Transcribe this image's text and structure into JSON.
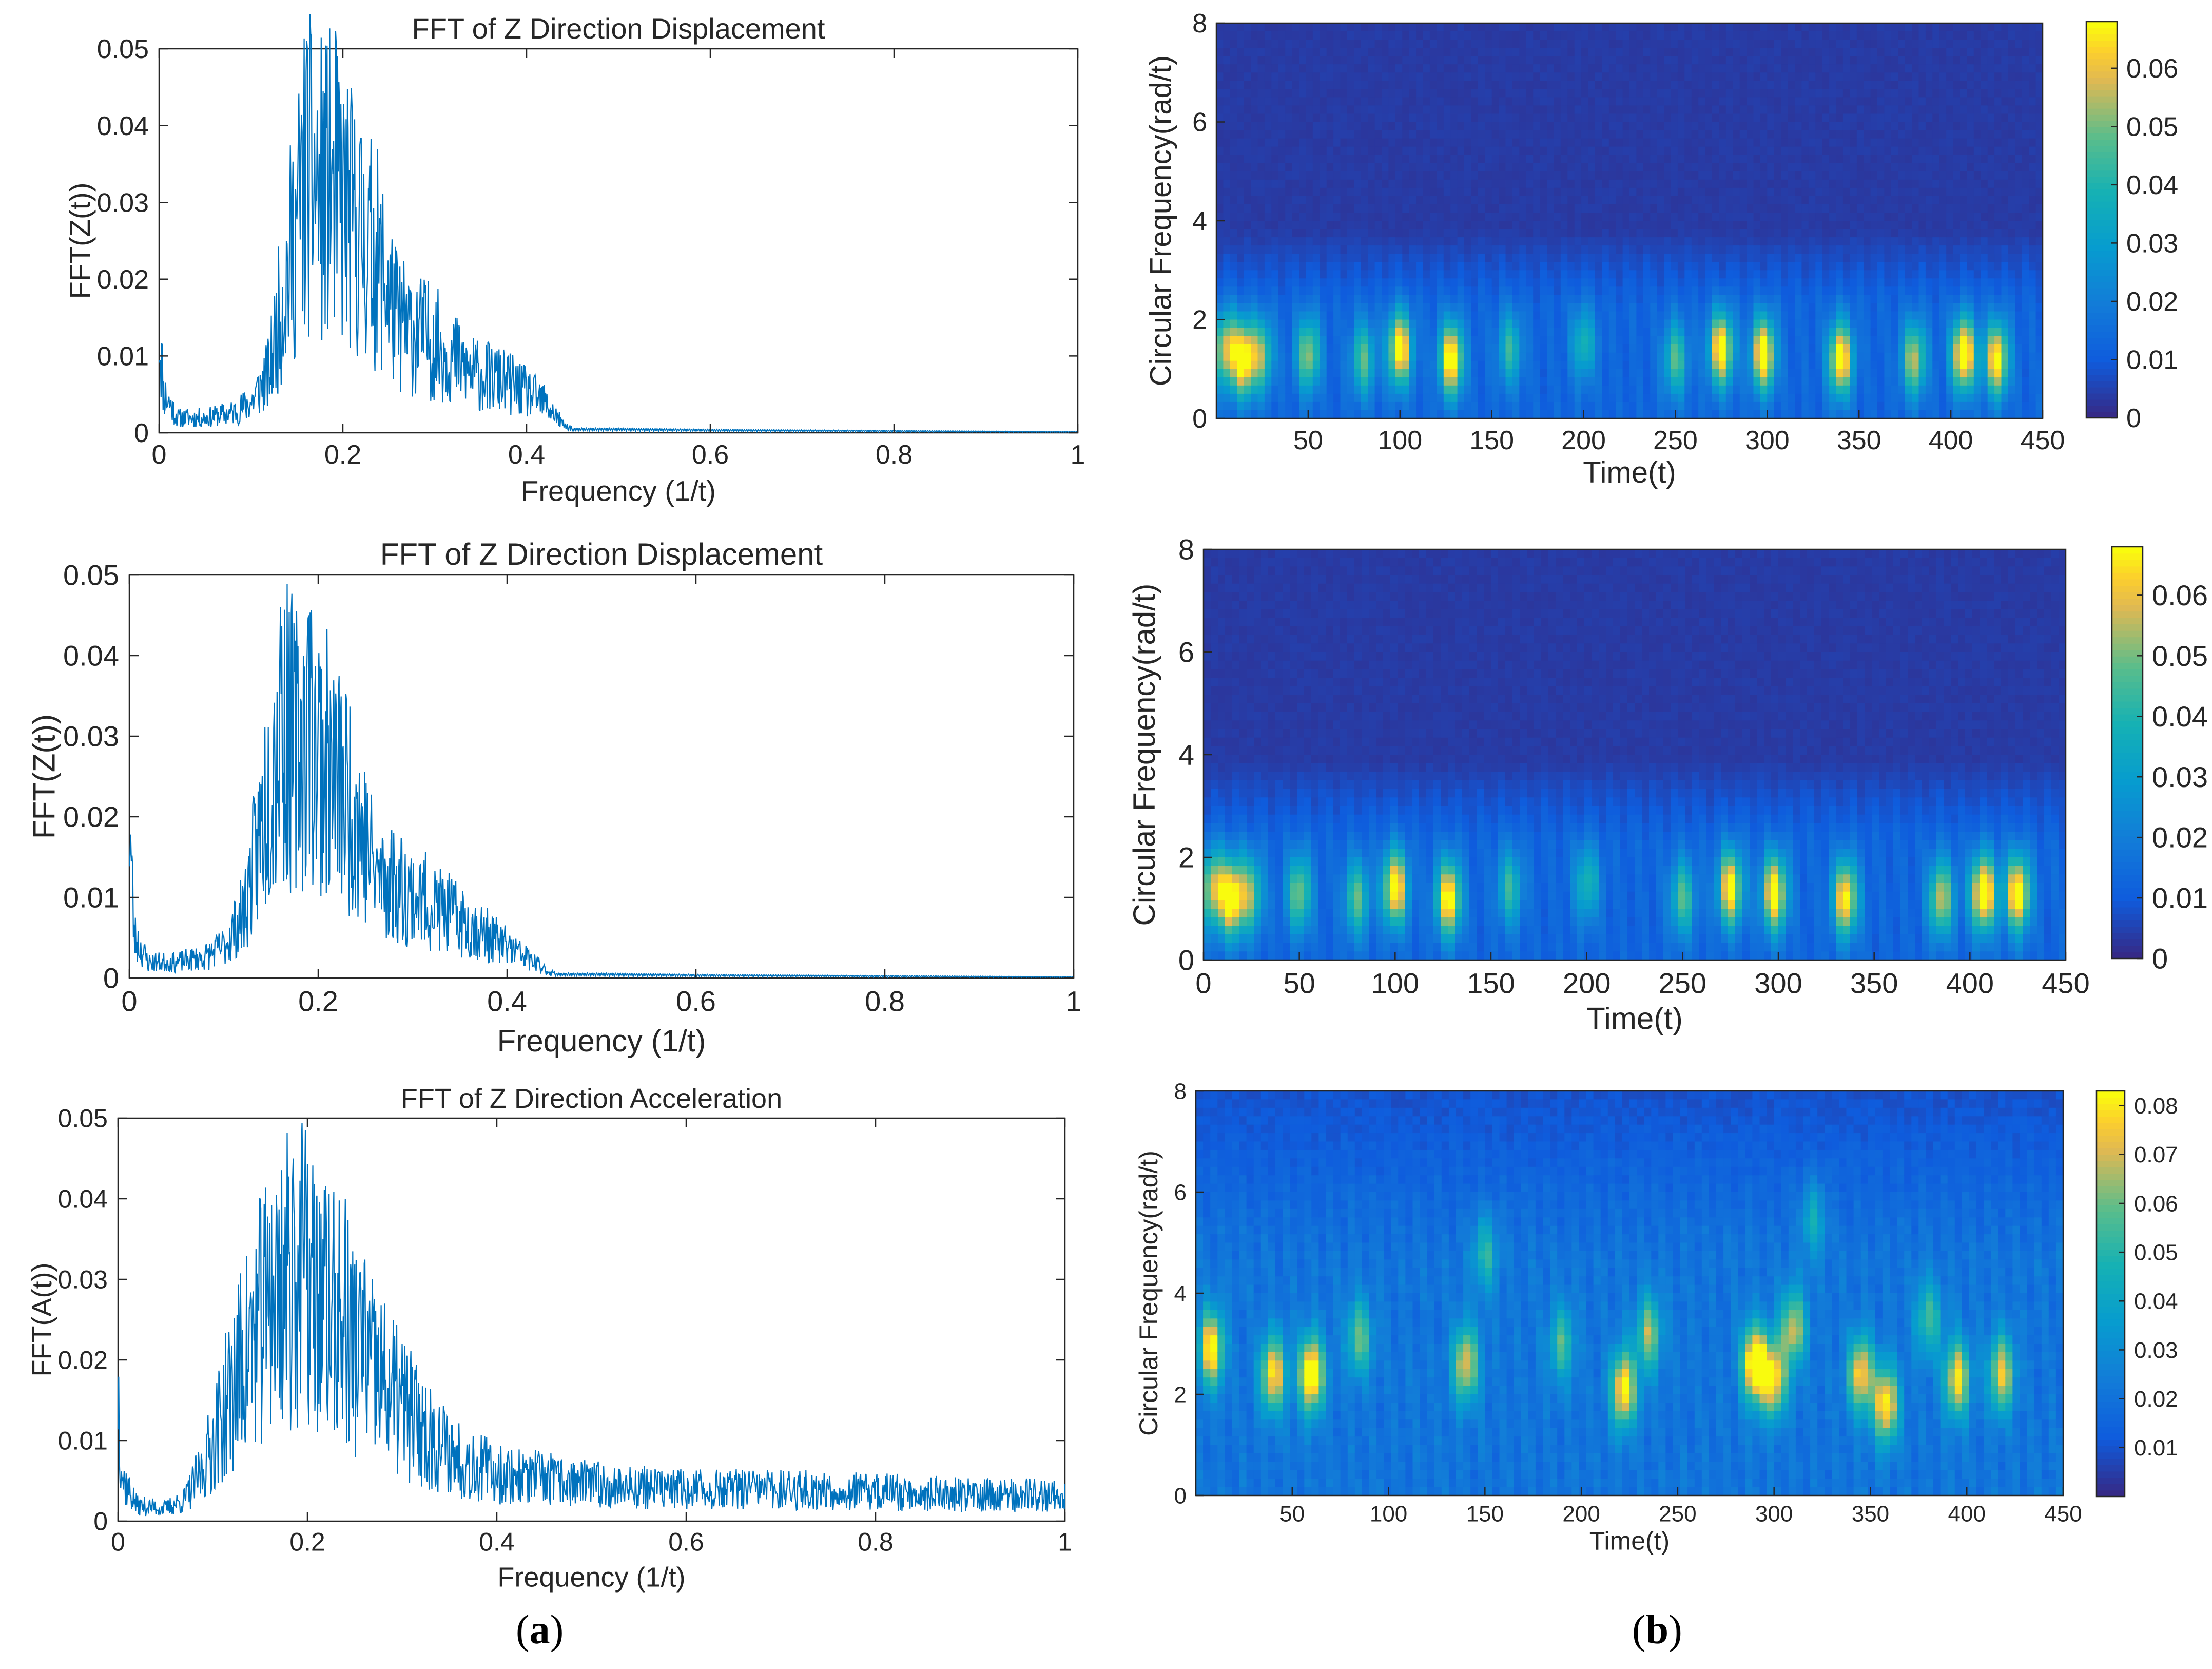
{
  "panel_labels": {
    "a": "a",
    "b": "b"
  },
  "colors": {
    "line": "#0072BD",
    "axis": "#262626",
    "background": "#352a87"
  },
  "chart_data": [
    {
      "type": "line",
      "title": "FFT of Z Direction Displacement",
      "xlabel": "Frequency (1/t)",
      "ylabel": "FFT(Z(t))",
      "xlim": [
        0,
        1
      ],
      "ylim": [
        0,
        0.05
      ],
      "xticks": [
        "0",
        "0.2",
        "0.4",
        "0.6",
        "0.8",
        "1"
      ],
      "yticks": [
        "0",
        "0.01",
        "0.02",
        "0.03",
        "0.04",
        "0.05"
      ],
      "grid": false,
      "envelope": {
        "x": [
          0,
          0.005,
          0.02,
          0.05,
          0.08,
          0.1,
          0.12,
          0.135,
          0.15,
          0.16,
          0.175,
          0.19,
          0.21,
          0.24,
          0.26,
          0.3,
          0.34,
          0.38,
          0.4,
          0.42,
          0.44,
          0.45,
          0.5,
          0.6,
          0.8,
          1.0
        ],
        "y": [
          0.011,
          0.004,
          0.0015,
          0.0015,
          0.002,
          0.003,
          0.006,
          0.014,
          0.021,
          0.026,
          0.024,
          0.025,
          0.021,
          0.017,
          0.011,
          0.009,
          0.006,
          0.005,
          0.004,
          0.003,
          0.0008,
          0.0004,
          0.0004,
          0.0003,
          0.0002,
          0.0001
        ]
      },
      "peaks": [
        {
          "x": 0.16,
          "y": 0.047
        },
        {
          "x": 0.175,
          "y": 0.033
        },
        {
          "x": 0.19,
          "y": 0.038
        },
        {
          "x": 0.2,
          "y": 0.032
        },
        {
          "x": 0.24,
          "y": 0.028
        }
      ]
    },
    {
      "type": "line",
      "title": "FFT of Z Direction Displacement",
      "xlabel": "Frequency (1/t)",
      "ylabel": "FFT(Z(t))",
      "xlim": [
        0,
        1
      ],
      "ylim": [
        0,
        0.05
      ],
      "xticks": [
        "0",
        "0.2",
        "0.4",
        "0.6",
        "0.8",
        "1"
      ],
      "yticks": [
        "0",
        "0.01",
        "0.02",
        "0.03",
        "0.04",
        "0.05"
      ],
      "grid": false,
      "envelope": {
        "x": [
          0,
          0.005,
          0.02,
          0.05,
          0.08,
          0.1,
          0.12,
          0.135,
          0.15,
          0.16,
          0.175,
          0.19,
          0.21,
          0.24,
          0.26,
          0.3,
          0.34,
          0.38,
          0.4,
          0.42,
          0.44,
          0.45,
          0.5,
          0.6,
          0.8,
          1.0
        ],
        "y": [
          0.016,
          0.004,
          0.0015,
          0.0015,
          0.002,
          0.003,
          0.006,
          0.012,
          0.02,
          0.024,
          0.022,
          0.024,
          0.02,
          0.016,
          0.01,
          0.008,
          0.006,
          0.004,
          0.003,
          0.002,
          0.0008,
          0.0004,
          0.0004,
          0.0003,
          0.0002,
          0.0001
        ]
      },
      "peaks": [
        {
          "x": 0.16,
          "y": 0.046
        },
        {
          "x": 0.175,
          "y": 0.038
        },
        {
          "x": 0.19,
          "y": 0.045
        },
        {
          "x": 0.2,
          "y": 0.033
        },
        {
          "x": 0.24,
          "y": 0.024
        }
      ]
    },
    {
      "type": "line",
      "title": "FFT of Z Direction Acceleration",
      "xlabel": "Frequency (1/t)",
      "ylabel": "FFT(A(t))",
      "xlim": [
        0,
        1
      ],
      "ylim": [
        0,
        0.05
      ],
      "xticks": [
        "0",
        "0.2",
        "0.4",
        "0.6",
        "0.8",
        "1"
      ],
      "yticks": [
        "0",
        "0.01",
        "0.02",
        "0.03",
        "0.04",
        "0.05"
      ],
      "grid": false,
      "envelope": {
        "x": [
          0,
          0.005,
          0.02,
          0.05,
          0.07,
          0.09,
          0.11,
          0.13,
          0.15,
          0.17,
          0.19,
          0.21,
          0.23,
          0.25,
          0.27,
          0.3,
          0.33,
          0.36,
          0.4,
          0.45,
          0.5,
          0.6,
          0.7,
          0.8,
          0.9,
          1.0
        ],
        "y": [
          0.013,
          0.004,
          0.0015,
          0.0012,
          0.002,
          0.005,
          0.01,
          0.015,
          0.019,
          0.022,
          0.024,
          0.021,
          0.019,
          0.017,
          0.014,
          0.011,
          0.008,
          0.006,
          0.0045,
          0.004,
          0.0035,
          0.003,
          0.003,
          0.0028,
          0.0025,
          0.0025
        ]
      },
      "peaks": [
        {
          "x": 0.16,
          "y": 0.037
        },
        {
          "x": 0.185,
          "y": 0.045
        },
        {
          "x": 0.195,
          "y": 0.042
        },
        {
          "x": 0.22,
          "y": 0.037
        },
        {
          "x": 0.24,
          "y": 0.04
        },
        {
          "x": 0.26,
          "y": 0.032
        }
      ]
    },
    {
      "type": "heatmap",
      "title": "",
      "xlabel": "Time(t)",
      "ylabel": "Circular Frequency(rad/t)",
      "xlim": [
        0,
        450
      ],
      "ylim": [
        0,
        8
      ],
      "xticks": [
        "50",
        "100",
        "150",
        "200",
        "250",
        "300",
        "350",
        "400",
        "450"
      ],
      "yticks": [
        "0",
        "2",
        "4",
        "6",
        "8"
      ],
      "colorbar": {
        "range": [
          0,
          0.068
        ],
        "ticks": [
          "0",
          "0.01",
          "0.02",
          "0.03",
          "0.04",
          "0.05",
          "0.06"
        ]
      },
      "base_level": 0.004,
      "band_top": 3.8,
      "hotspots": [
        {
          "t": 5,
          "f": 1.4,
          "v": 0.045
        },
        {
          "t": 15,
          "f": 1.2,
          "v": 0.058
        },
        {
          "t": 25,
          "f": 1.3,
          "v": 0.035
        },
        {
          "t": 50,
          "f": 1.3,
          "v": 0.042
        },
        {
          "t": 80,
          "f": 1.2,
          "v": 0.035
        },
        {
          "t": 100,
          "f": 1.4,
          "v": 0.06
        },
        {
          "t": 128,
          "f": 1.2,
          "v": 0.062
        },
        {
          "t": 160,
          "f": 1.4,
          "v": 0.03
        },
        {
          "t": 200,
          "f": 1.5,
          "v": 0.028
        },
        {
          "t": 250,
          "f": 1.2,
          "v": 0.035
        },
        {
          "t": 275,
          "f": 1.4,
          "v": 0.06
        },
        {
          "t": 298,
          "f": 1.3,
          "v": 0.062
        },
        {
          "t": 340,
          "f": 1.2,
          "v": 0.06
        },
        {
          "t": 380,
          "f": 1.2,
          "v": 0.045
        },
        {
          "t": 407,
          "f": 1.3,
          "v": 0.065
        },
        {
          "t": 425,
          "f": 1.2,
          "v": 0.058
        }
      ]
    },
    {
      "type": "heatmap",
      "title": "",
      "xlabel": "Time(t)",
      "ylabel": "Circular Frequency(rad/t)",
      "xlim": [
        0,
        450
      ],
      "ylim": [
        0,
        8
      ],
      "xticks": [
        "0",
        "50",
        "100",
        "150",
        "200",
        "250",
        "300",
        "350",
        "400",
        "450"
      ],
      "yticks": [
        "0",
        "2",
        "4",
        "6",
        "8"
      ],
      "colorbar": {
        "range": [
          0,
          0.068
        ],
        "ticks": [
          "0",
          "0.01",
          "0.02",
          "0.03",
          "0.04",
          "0.05",
          "0.06"
        ]
      },
      "base_level": 0.004,
      "band_top": 3.9,
      "hotspots": [
        {
          "t": 5,
          "f": 1.4,
          "v": 0.045
        },
        {
          "t": 15,
          "f": 1.2,
          "v": 0.058
        },
        {
          "t": 25,
          "f": 1.3,
          "v": 0.035
        },
        {
          "t": 50,
          "f": 1.3,
          "v": 0.04
        },
        {
          "t": 80,
          "f": 1.2,
          "v": 0.035
        },
        {
          "t": 100,
          "f": 1.4,
          "v": 0.058
        },
        {
          "t": 128,
          "f": 1.2,
          "v": 0.06
        },
        {
          "t": 160,
          "f": 1.4,
          "v": 0.03
        },
        {
          "t": 200,
          "f": 1.5,
          "v": 0.028
        },
        {
          "t": 250,
          "f": 1.2,
          "v": 0.035
        },
        {
          "t": 275,
          "f": 1.4,
          "v": 0.058
        },
        {
          "t": 298,
          "f": 1.3,
          "v": 0.06
        },
        {
          "t": 335,
          "f": 1.2,
          "v": 0.058
        },
        {
          "t": 385,
          "f": 1.2,
          "v": 0.045
        },
        {
          "t": 407,
          "f": 1.3,
          "v": 0.065
        },
        {
          "t": 425,
          "f": 1.3,
          "v": 0.06
        }
      ]
    },
    {
      "type": "heatmap",
      "title": "",
      "xlabel": "Time(t)",
      "ylabel": "Circular Frequency(rad/t)",
      "xlim": [
        0,
        450
      ],
      "ylim": [
        0,
        8
      ],
      "xticks": [
        "50",
        "100",
        "150",
        "200",
        "250",
        "300",
        "350",
        "400",
        "450"
      ],
      "yticks": [
        "0",
        "2",
        "4",
        "6",
        "8"
      ],
      "colorbar": {
        "range": [
          0,
          0.083
        ],
        "ticks": [
          "0.01",
          "0.02",
          "0.03",
          "0.04",
          "0.05",
          "0.06",
          "0.07",
          "0.08"
        ]
      },
      "base_level": 0.012,
      "band_top": 7.8,
      "hotspots": [
        {
          "t": 8,
          "f": 2.9,
          "v": 0.065
        },
        {
          "t": 40,
          "f": 2.4,
          "v": 0.06
        },
        {
          "t": 60,
          "f": 2.4,
          "v": 0.075
        },
        {
          "t": 85,
          "f": 3.1,
          "v": 0.04
        },
        {
          "t": 140,
          "f": 2.6,
          "v": 0.055
        },
        {
          "t": 190,
          "f": 3.0,
          "v": 0.035
        },
        {
          "t": 222,
          "f": 2.1,
          "v": 0.065
        },
        {
          "t": 235,
          "f": 3.2,
          "v": 0.045
        },
        {
          "t": 290,
          "f": 2.6,
          "v": 0.078
        },
        {
          "t": 300,
          "f": 2.3,
          "v": 0.06
        },
        {
          "t": 310,
          "f": 3.3,
          "v": 0.05
        },
        {
          "t": 345,
          "f": 2.4,
          "v": 0.06
        },
        {
          "t": 358,
          "f": 1.8,
          "v": 0.065
        },
        {
          "t": 395,
          "f": 2.3,
          "v": 0.06
        },
        {
          "t": 418,
          "f": 2.4,
          "v": 0.055
        },
        {
          "t": 380,
          "f": 3.5,
          "v": 0.035
        },
        {
          "t": 150,
          "f": 4.8,
          "v": 0.03
        },
        {
          "t": 320,
          "f": 5.5,
          "v": 0.025
        }
      ]
    }
  ]
}
